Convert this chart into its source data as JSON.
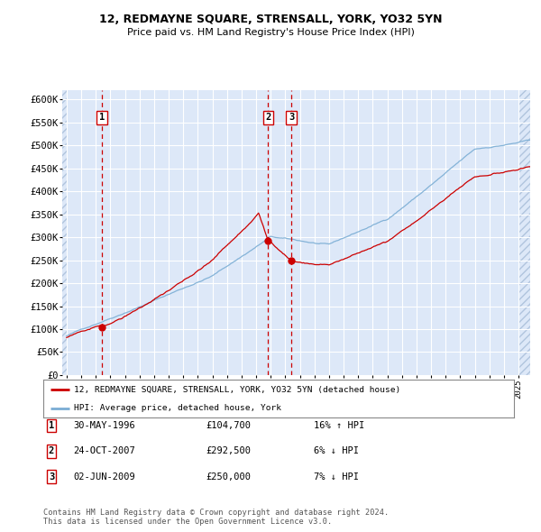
{
  "title1": "12, REDMAYNE SQUARE, STRENSALL, YORK, YO32 5YN",
  "title2": "Price paid vs. HM Land Registry's House Price Index (HPI)",
  "plot_bg_color": "#dde8f8",
  "grid_color": "#ffffff",
  "ylim": [
    0,
    620000
  ],
  "yticks": [
    0,
    50000,
    100000,
    150000,
    200000,
    250000,
    300000,
    350000,
    400000,
    450000,
    500000,
    550000,
    600000
  ],
  "xlim_start": 1993.7,
  "xlim_end": 2025.8,
  "sale_dates": [
    1996.41,
    2007.82,
    2009.42
  ],
  "sale_prices": [
    104700,
    292500,
    250000
  ],
  "sale_labels": [
    "1",
    "2",
    "3"
  ],
  "red_line_color": "#cc0000",
  "blue_line_color": "#7aadd4",
  "dot_color": "#cc0000",
  "vline_color": "#cc0000",
  "legend_label_red": "12, REDMAYNE SQUARE, STRENSALL, YORK, YO32 5YN (detached house)",
  "legend_label_blue": "HPI: Average price, detached house, York",
  "table_rows": [
    [
      "1",
      "30-MAY-1996",
      "£104,700",
      "16% ↑ HPI"
    ],
    [
      "2",
      "24-OCT-2007",
      "£292,500",
      "6% ↓ HPI"
    ],
    [
      "3",
      "02-JUN-2009",
      "£250,000",
      "7% ↓ HPI"
    ]
  ],
  "footer": "Contains HM Land Registry data © Crown copyright and database right 2024.\nThis data is licensed under the Open Government Licence v3.0."
}
